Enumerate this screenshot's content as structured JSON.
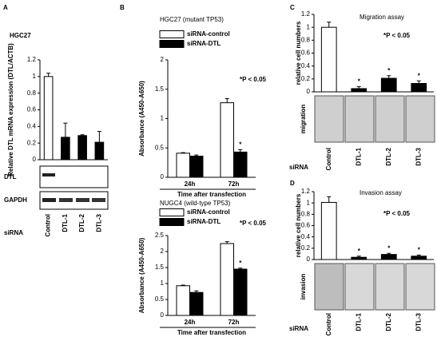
{
  "chart_data": [
    {
      "type": "bar",
      "panel": "A",
      "title": "HGC27",
      "ylabel": "Relative DTL mRNA expression (DTL/ACTB)",
      "categories": [
        "Control",
        "DTL-1",
        "DTL-2",
        "DTL-3"
      ],
      "values": [
        1,
        0.27,
        0.29,
        0.21
      ],
      "errors": [
        0.04,
        0.17,
        0.01,
        0.13
      ],
      "colors": [
        "#ffffff",
        "#000000",
        "#000000",
        "#000000"
      ],
      "ylim": [
        0,
        1.2
      ],
      "yticks": [
        0,
        0.2,
        0.4,
        0.6,
        0.8,
        1,
        1.2
      ],
      "blot_labels": [
        "DTL",
        "GAPDH"
      ],
      "row_label": "siRNA"
    },
    {
      "type": "bar",
      "panel": "B",
      "title": "HGC27 (mutant TP53)",
      "ylabel": "Absorbance (A450-A650)",
      "xlabel": "Time after transfection",
      "categories": [
        "24h",
        "72h"
      ],
      "series": [
        {
          "name": "siRNA-control",
          "color": "#ffffff",
          "values": [
            0.41,
            1.27
          ],
          "errors": [
            0.01,
            0.07
          ]
        },
        {
          "name": "siRNA-DTL",
          "color": "#000000",
          "values": [
            0.36,
            0.43
          ],
          "errors": [
            0.02,
            0.04
          ],
          "stars": [
            null,
            "*"
          ]
        }
      ],
      "ylim": [
        0,
        2
      ],
      "yticks": [
        0,
        0.5,
        1,
        1.5,
        2
      ],
      "annotation": "*P < 0.05"
    },
    {
      "type": "bar",
      "title": "NUGC4 (wild-type TP53)",
      "ylabel": "Absorbance (A450-A650)",
      "xlabel": "Time after transfection",
      "categories": [
        "24h",
        "72h"
      ],
      "series": [
        {
          "name": "siRNA-control",
          "color": "#ffffff",
          "values": [
            0.93,
            2.25
          ],
          "errors": [
            0.02,
            0.06
          ]
        },
        {
          "name": "siRNA-DTL",
          "color": "#000000",
          "values": [
            0.72,
            1.45
          ],
          "errors": [
            0.05,
            0.03
          ],
          "stars": [
            null,
            "*"
          ]
        }
      ],
      "ylim": [
        0,
        2.5
      ],
      "yticks": [
        0,
        0.5,
        1,
        1.5,
        2,
        2.5
      ],
      "annotation": "*P < 0.05"
    },
    {
      "type": "bar",
      "panel": "C",
      "title": "Migration assay",
      "ylabel": "relative cell numbers",
      "categories": [
        "Control",
        "DTL-1",
        "DTL-2",
        "DTL-3"
      ],
      "values": [
        1,
        0.05,
        0.21,
        0.13
      ],
      "errors": [
        0.08,
        0.03,
        0.04,
        0.04
      ],
      "stars": [
        null,
        "*",
        "*",
        "*"
      ],
      "colors": [
        "#ffffff",
        "#000000",
        "#000000",
        "#000000"
      ],
      "ylim": [
        0,
        1.2
      ],
      "yticks": [
        0,
        0.2,
        0.4,
        0.6,
        0.8,
        1,
        1.2
      ],
      "annotation": "*P < 0.05",
      "image_label": "migration",
      "row_label": "siRNA"
    },
    {
      "type": "bar",
      "panel": "D",
      "title": "Invasion assay",
      "ylabel": "relative cell numbers",
      "categories": [
        "Control",
        "DTL-1",
        "DTL-2",
        "DTL-3"
      ],
      "values": [
        1.01,
        0.04,
        0.09,
        0.06
      ],
      "errors": [
        0.1,
        0.02,
        0.02,
        0.02
      ],
      "stars": [
        null,
        "*",
        "*",
        "*"
      ],
      "colors": [
        "#ffffff",
        "#000000",
        "#000000",
        "#000000"
      ],
      "ylim": [
        0,
        1.2
      ],
      "yticks": [
        0,
        0.2,
        0.4,
        0.6,
        0.8,
        1,
        1.2
      ],
      "annotation": "*P < 0.05",
      "image_label": "invasion",
      "row_label": "siRNA"
    }
  ]
}
